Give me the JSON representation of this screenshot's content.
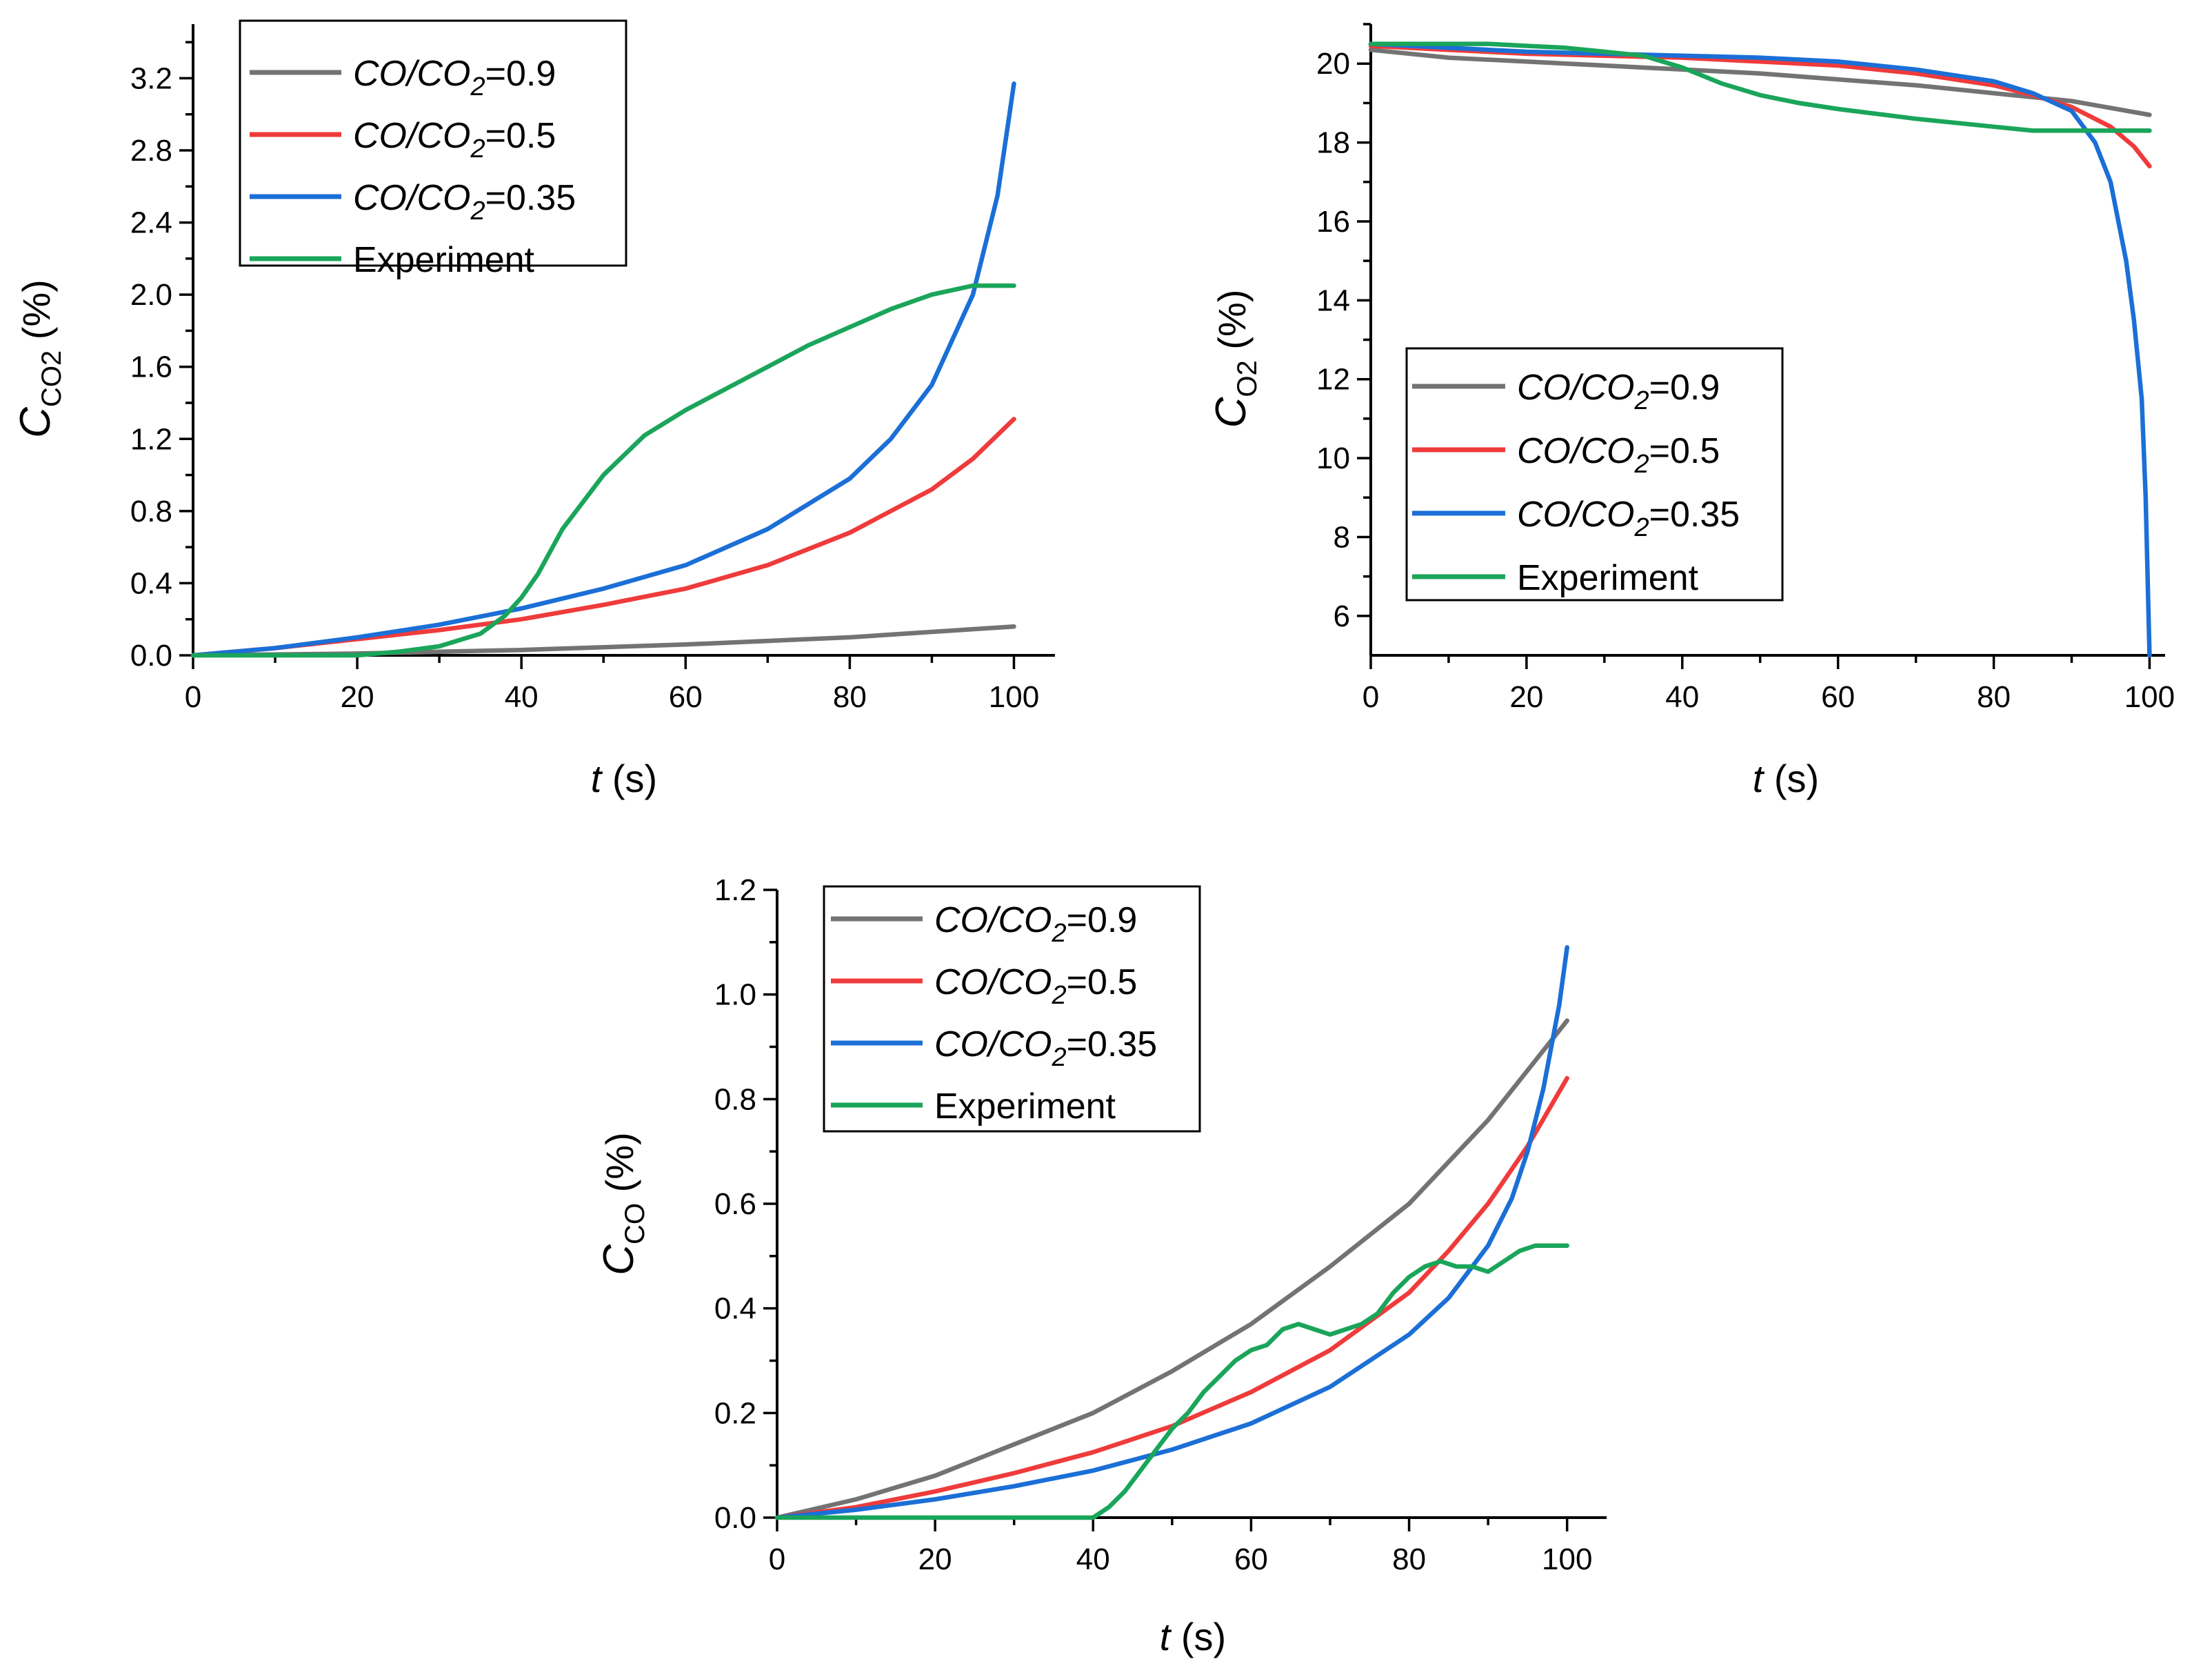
{
  "colors": {
    "CO/CO2=0.9": "#737373",
    "CO/CO2=0.5": "#ef3b3b",
    "CO/CO2=0.35": "#1b6fd6",
    "Experiment": "#1aa55a"
  },
  "chart_data": [
    {
      "id": "co2",
      "type": "line",
      "title": "",
      "xlabel": {
        "italic": "t",
        "rest": " (s)"
      },
      "ylabel": {
        "main": "C",
        "sub": "CO2",
        "rest": " (%)"
      },
      "xlim": [
        0,
        105
      ],
      "ylim": [
        0,
        3.5
      ],
      "xticks": [
        "0",
        "20",
        "40",
        "60",
        "80",
        "100"
      ],
      "xtick_values": [
        0,
        20,
        40,
        60,
        80,
        100
      ],
      "yticks": [
        "0.0",
        "0.4",
        "0.8",
        "1.2",
        "1.6",
        "2.0",
        "2.4",
        "2.8",
        "3.2"
      ],
      "ytick_values": [
        0,
        0.4,
        0.8,
        1.2,
        1.6,
        2.0,
        2.4,
        2.8,
        3.2
      ],
      "legend_position": "top-left",
      "legend": [
        {
          "prefix": "CO/CO",
          "sub": "2",
          "suffix": "=0.9",
          "series": "CO/CO2=0.9"
        },
        {
          "prefix": "CO/CO",
          "sub": "2",
          "suffix": "=0.5",
          "series": "CO/CO2=0.5"
        },
        {
          "prefix": "CO/CO",
          "sub": "2",
          "suffix": "=0.35",
          "series": "CO/CO2=0.35"
        },
        {
          "prefix": "Experiment",
          "sub": "",
          "suffix": "",
          "series": "Experiment"
        }
      ],
      "series": [
        {
          "name": "CO/CO2=0.9",
          "x": [
            0,
            10,
            20,
            30,
            40,
            50,
            60,
            70,
            80,
            90,
            100
          ],
          "y": [
            0,
            0.005,
            0.01,
            0.02,
            0.03,
            0.045,
            0.06,
            0.08,
            0.1,
            0.13,
            0.16
          ]
        },
        {
          "name": "CO/CO2=0.5",
          "x": [
            0,
            10,
            20,
            30,
            40,
            50,
            60,
            70,
            80,
            90,
            95,
            100
          ],
          "y": [
            0,
            0.04,
            0.09,
            0.14,
            0.2,
            0.28,
            0.37,
            0.5,
            0.68,
            0.92,
            1.09,
            1.31
          ]
        },
        {
          "name": "CO/CO2=0.35",
          "x": [
            0,
            10,
            20,
            30,
            40,
            50,
            60,
            70,
            80,
            85,
            90,
            95,
            98,
            100
          ],
          "y": [
            0,
            0.04,
            0.1,
            0.17,
            0.26,
            0.37,
            0.5,
            0.7,
            0.98,
            1.2,
            1.5,
            2.0,
            2.55,
            3.17
          ]
        },
        {
          "name": "Experiment",
          "x": [
            0,
            20,
            25,
            30,
            35,
            38,
            40,
            42,
            45,
            50,
            55,
            60,
            65,
            70,
            75,
            80,
            85,
            90,
            95,
            100
          ],
          "y": [
            0,
            0,
            0.02,
            0.05,
            0.12,
            0.22,
            0.32,
            0.45,
            0.7,
            1.0,
            1.22,
            1.36,
            1.48,
            1.6,
            1.72,
            1.82,
            1.92,
            2.0,
            2.05,
            2.05
          ]
        }
      ]
    },
    {
      "id": "o2",
      "type": "line",
      "title": "",
      "xlabel": {
        "italic": "t",
        "rest": " (s)"
      },
      "ylabel": {
        "main": "C",
        "sub": "O2",
        "rest": " (%)"
      },
      "xlim": [
        0,
        102
      ],
      "ylim": [
        5,
        21
      ],
      "xticks": [
        "0",
        "20",
        "40",
        "60",
        "80",
        "100"
      ],
      "xtick_values": [
        0,
        20,
        40,
        60,
        80,
        100
      ],
      "yticks": [
        "6",
        "8",
        "10",
        "12",
        "14",
        "16",
        "18",
        "20"
      ],
      "ytick_values": [
        6,
        8,
        10,
        12,
        14,
        16,
        18,
        20
      ],
      "legend_position": "middle-left",
      "legend": [
        {
          "prefix": "CO/CO",
          "sub": "2",
          "suffix": "=0.9",
          "series": "CO/CO2=0.9"
        },
        {
          "prefix": "CO/CO",
          "sub": "2",
          "suffix": "=0.5",
          "series": "CO/CO2=0.5"
        },
        {
          "prefix": "CO/CO",
          "sub": "2",
          "suffix": "=0.35",
          "series": "CO/CO2=0.35"
        },
        {
          "prefix": "Experiment",
          "sub": "",
          "suffix": "",
          "series": "Experiment"
        }
      ],
      "series": [
        {
          "name": "CO/CO2=0.9",
          "x": [
            0,
            10,
            20,
            30,
            40,
            50,
            60,
            70,
            80,
            90,
            100
          ],
          "y": [
            20.35,
            20.15,
            20.05,
            19.95,
            19.85,
            19.75,
            19.6,
            19.45,
            19.25,
            19.05,
            18.7
          ]
        },
        {
          "name": "CO/CO2=0.5",
          "x": [
            0,
            10,
            20,
            30,
            40,
            50,
            60,
            70,
            80,
            85,
            90,
            95,
            98,
            100
          ],
          "y": [
            20.45,
            20.35,
            20.25,
            20.2,
            20.15,
            20.05,
            19.95,
            19.75,
            19.45,
            19.2,
            18.9,
            18.4,
            17.9,
            17.4
          ]
        },
        {
          "name": "CO/CO2=0.35",
          "x": [
            0,
            10,
            20,
            30,
            40,
            50,
            60,
            70,
            80,
            85,
            90,
            93,
            95,
            97,
            98,
            99,
            99.5,
            100
          ],
          "y": [
            20.5,
            20.4,
            20.3,
            20.25,
            20.2,
            20.15,
            20.05,
            19.85,
            19.55,
            19.25,
            18.8,
            18.0,
            17.0,
            15.0,
            13.5,
            11.5,
            9.0,
            5.0
          ]
        },
        {
          "name": "Experiment",
          "x": [
            0,
            5,
            10,
            15,
            20,
            25,
            30,
            35,
            40,
            45,
            50,
            55,
            60,
            70,
            80,
            85,
            90,
            95,
            100
          ],
          "y": [
            20.5,
            20.5,
            20.5,
            20.5,
            20.45,
            20.4,
            20.3,
            20.2,
            19.9,
            19.5,
            19.2,
            19.0,
            18.85,
            18.6,
            18.4,
            18.3,
            18.3,
            18.3,
            18.3
          ]
        }
      ]
    },
    {
      "id": "co",
      "type": "line",
      "title": "",
      "xlabel": {
        "italic": "t",
        "rest": " (s)"
      },
      "ylabel": {
        "main": "C",
        "sub": "CO",
        "rest": " (%)"
      },
      "xlim": [
        0,
        105
      ],
      "ylim": [
        0,
        1.2
      ],
      "xticks": [
        "0",
        "20",
        "40",
        "60",
        "80",
        "100"
      ],
      "xtick_values": [
        0,
        20,
        40,
        60,
        80,
        100
      ],
      "yticks": [
        "0.0",
        "0.2",
        "0.4",
        "0.6",
        "0.8",
        "1.0",
        "1.2"
      ],
      "ytick_values": [
        0,
        0.2,
        0.4,
        0.6,
        0.8,
        1.0,
        1.2
      ],
      "legend_position": "top-left",
      "legend": [
        {
          "prefix": "CO/CO",
          "sub": "2",
          "suffix": "=0.9",
          "series": "CO/CO2=0.9"
        },
        {
          "prefix": "CO/CO",
          "sub": "2",
          "suffix": "=0.5",
          "series": "CO/CO2=0.5"
        },
        {
          "prefix": "CO/CO",
          "sub": "2",
          "suffix": "=0.35",
          "series": "CO/CO2=0.35"
        },
        {
          "prefix": "Experiment",
          "sub": "",
          "suffix": "",
          "series": "Experiment"
        }
      ],
      "series": [
        {
          "name": "CO/CO2=0.9",
          "x": [
            0,
            10,
            20,
            30,
            40,
            50,
            60,
            70,
            80,
            90,
            100
          ],
          "y": [
            0,
            0.035,
            0.08,
            0.14,
            0.2,
            0.28,
            0.37,
            0.48,
            0.6,
            0.76,
            0.95
          ]
        },
        {
          "name": "CO/CO2=0.5",
          "x": [
            0,
            10,
            20,
            30,
            40,
            50,
            60,
            70,
            80,
            85,
            90,
            95,
            100
          ],
          "y": [
            0,
            0.02,
            0.05,
            0.085,
            0.125,
            0.175,
            0.24,
            0.32,
            0.43,
            0.51,
            0.6,
            0.71,
            0.84
          ]
        },
        {
          "name": "CO/CO2=0.35",
          "x": [
            0,
            10,
            20,
            30,
            40,
            50,
            60,
            70,
            80,
            85,
            90,
            93,
            95,
            97,
            99,
            100
          ],
          "y": [
            0,
            0.015,
            0.035,
            0.06,
            0.09,
            0.13,
            0.18,
            0.25,
            0.35,
            0.42,
            0.52,
            0.61,
            0.7,
            0.82,
            0.98,
            1.09
          ]
        },
        {
          "name": "Experiment",
          "x": [
            0,
            40,
            42,
            44,
            46,
            48,
            50,
            52,
            54,
            56,
            58,
            60,
            62,
            64,
            66,
            68,
            70,
            72,
            74,
            76,
            78,
            80,
            82,
            84,
            86,
            88,
            90,
            92,
            94,
            96,
            98,
            100
          ],
          "y": [
            0,
            0,
            0.02,
            0.05,
            0.09,
            0.13,
            0.17,
            0.2,
            0.24,
            0.27,
            0.3,
            0.32,
            0.33,
            0.36,
            0.37,
            0.36,
            0.35,
            0.36,
            0.37,
            0.39,
            0.43,
            0.46,
            0.48,
            0.49,
            0.48,
            0.48,
            0.47,
            0.49,
            0.51,
            0.52,
            0.52,
            0.52
          ]
        }
      ]
    }
  ]
}
